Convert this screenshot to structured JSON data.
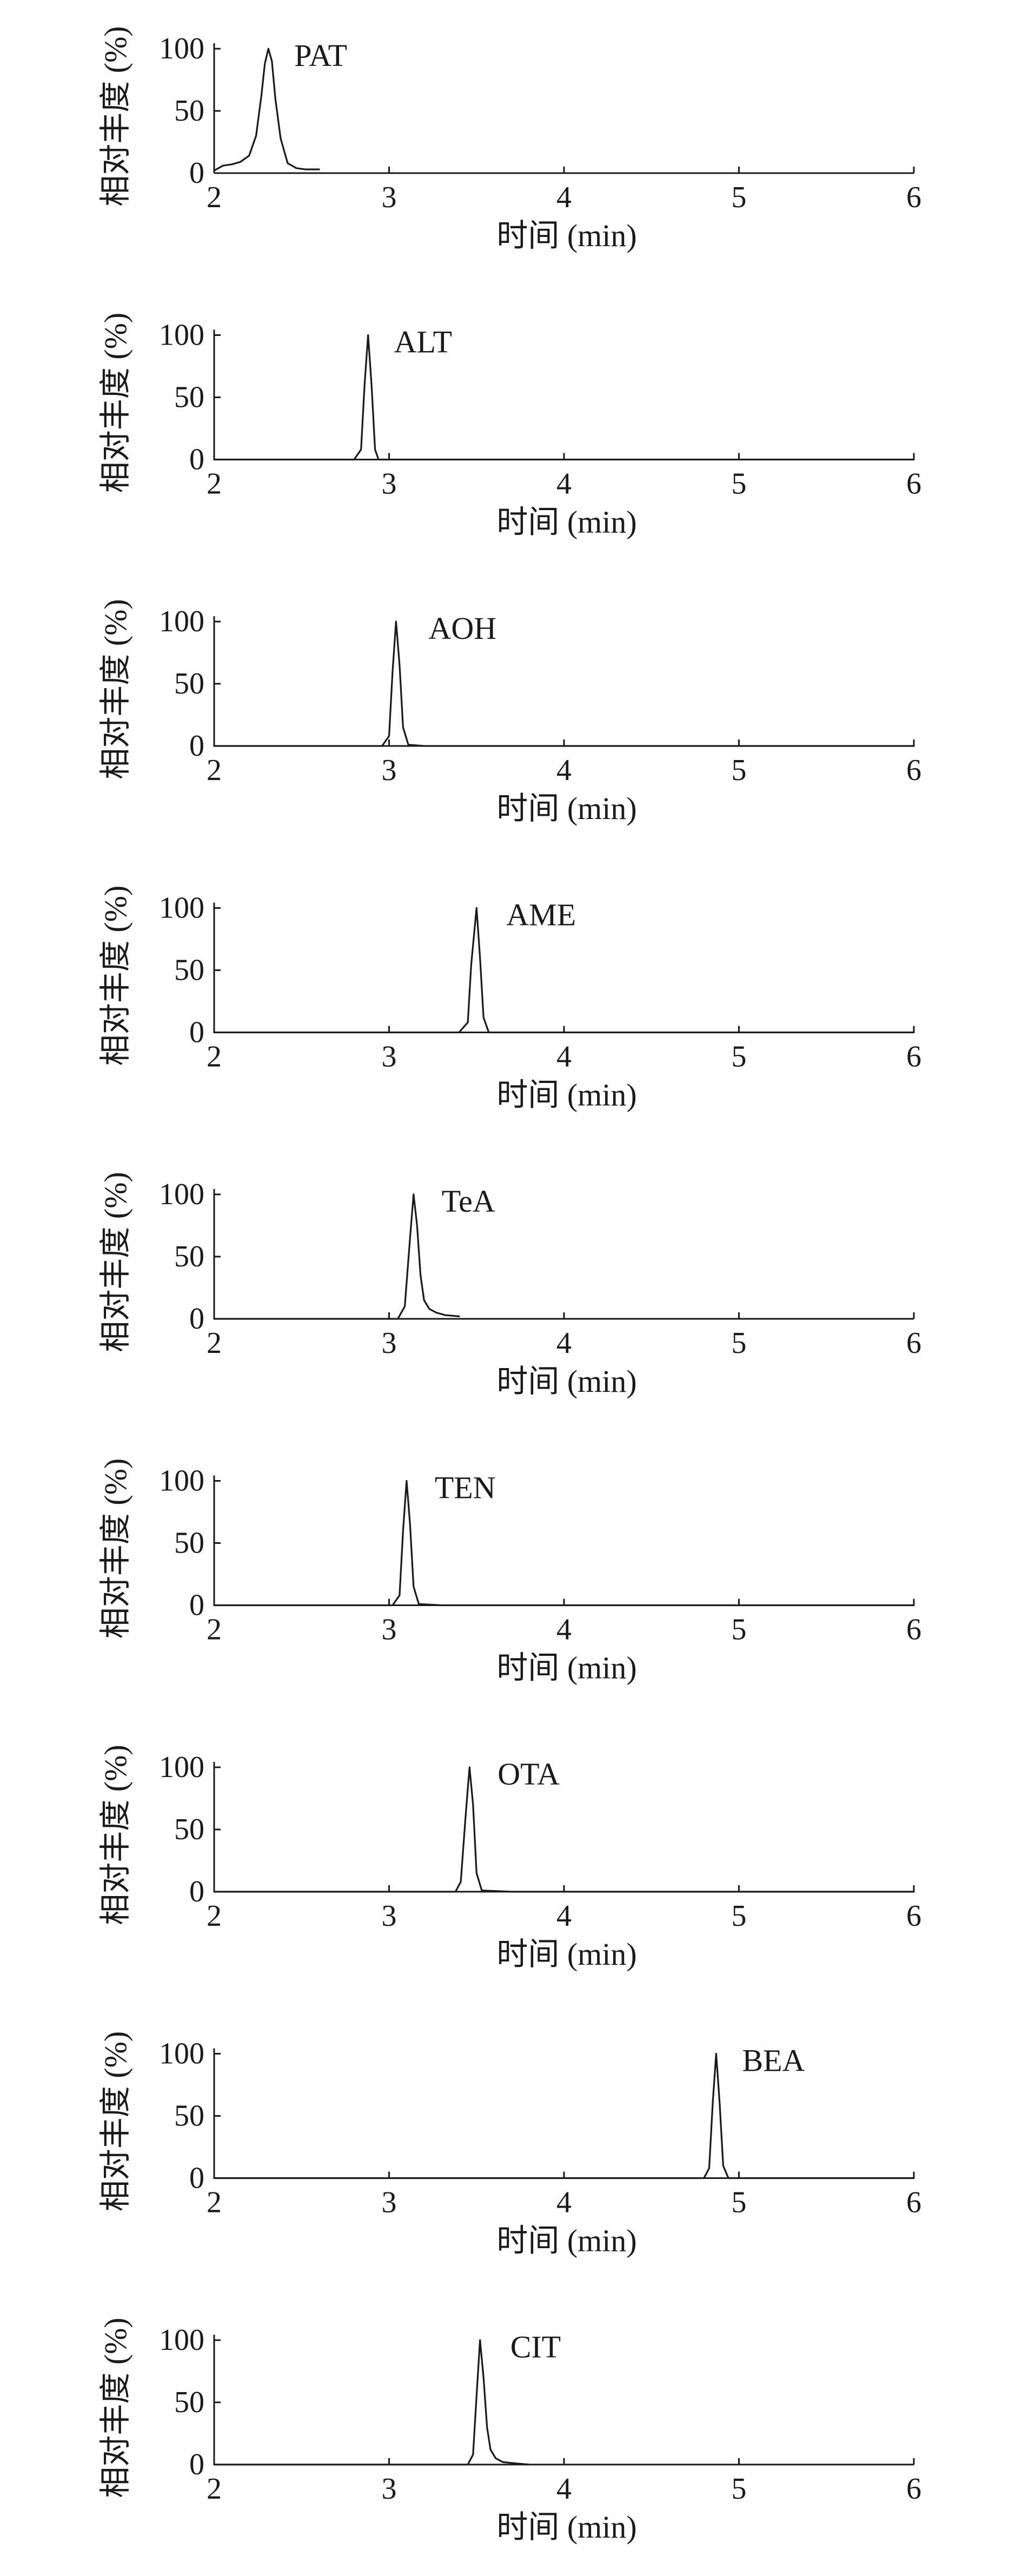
{
  "chart_data": [
    {
      "type": "line",
      "label": "PAT",
      "xlabel": "时间 (min)",
      "ylabel": "相对丰度 (%)",
      "xlim": [
        2,
        6
      ],
      "ylim": [
        0,
        100
      ],
      "xticks": [
        "2",
        "3",
        "4",
        "5",
        "6"
      ],
      "yticks": [
        "0",
        "50",
        "100"
      ],
      "series": [
        {
          "x": [
            2.0,
            2.05,
            2.1,
            2.15,
            2.2,
            2.24,
            2.27,
            2.29,
            2.31,
            2.33,
            2.35,
            2.38,
            2.42,
            2.47,
            2.52,
            2.6
          ],
          "y": [
            2,
            6,
            7,
            9,
            14,
            30,
            62,
            88,
            100,
            90,
            60,
            28,
            8,
            4,
            3,
            3
          ]
        }
      ]
    },
    {
      "type": "line",
      "label": "ALT",
      "xlabel": "时间 (min)",
      "ylabel": "相对丰度 (%)",
      "xlim": [
        2,
        6
      ],
      "ylim": [
        0,
        100
      ],
      "xticks": [
        "2",
        "3",
        "4",
        "5",
        "6"
      ],
      "yticks": [
        "0",
        "50",
        "100"
      ],
      "series": [
        {
          "x": [
            2.0,
            2.8,
            2.84,
            2.86,
            2.88,
            2.9,
            2.92,
            2.94,
            3.0,
            6.0
          ],
          "y": [
            0,
            0,
            8,
            60,
            100,
            60,
            8,
            0,
            0,
            0
          ]
        }
      ]
    },
    {
      "type": "line",
      "label": "AOH",
      "xlabel": "时间 (min)",
      "ylabel": "相对丰度 (%)",
      "xlim": [
        2,
        6
      ],
      "ylim": [
        0,
        100
      ],
      "xticks": [
        "2",
        "3",
        "4",
        "5",
        "6"
      ],
      "yticks": [
        "0",
        "50",
        "100"
      ],
      "series": [
        {
          "x": [
            2.0,
            2.96,
            3.0,
            3.02,
            3.04,
            3.06,
            3.08,
            3.11,
            3.2,
            6.0
          ],
          "y": [
            0,
            0,
            8,
            60,
            100,
            65,
            15,
            1,
            0,
            0
          ]
        }
      ]
    },
    {
      "type": "line",
      "label": "AME",
      "xlabel": "时间 (min)",
      "ylabel": "相对丰度 (%)",
      "xlim": [
        2,
        6
      ],
      "ylim": [
        0,
        100
      ],
      "xticks": [
        "2",
        "3",
        "4",
        "5",
        "6"
      ],
      "yticks": [
        "0",
        "50",
        "100"
      ],
      "series": [
        {
          "x": [
            2.0,
            3.4,
            3.45,
            3.47,
            3.5,
            3.52,
            3.54,
            3.57,
            3.7,
            6.0
          ],
          "y": [
            0,
            0,
            8,
            55,
            100,
            60,
            12,
            0,
            0,
            0
          ]
        }
      ]
    },
    {
      "type": "line",
      "label": "TeA",
      "xlabel": "时间 (min)",
      "ylabel": "相对丰度 (%)",
      "xlim": [
        2,
        6
      ],
      "ylim": [
        0,
        100
      ],
      "xticks": [
        "2",
        "3",
        "4",
        "5",
        "6"
      ],
      "yticks": [
        "0",
        "50",
        "100"
      ],
      "series": [
        {
          "x": [
            2.0,
            3.05,
            3.09,
            3.12,
            3.14,
            3.16,
            3.18,
            3.2,
            3.23,
            3.27,
            3.32,
            3.4
          ],
          "y": [
            0,
            0,
            10,
            65,
            100,
            75,
            35,
            15,
            8,
            5,
            3,
            2
          ]
        }
      ]
    },
    {
      "type": "line",
      "label": "TEN",
      "xlabel": "时间 (min)",
      "ylabel": "相对丰度 (%)",
      "xlim": [
        2,
        6
      ],
      "ylim": [
        0,
        100
      ],
      "xticks": [
        "2",
        "3",
        "4",
        "5",
        "6"
      ],
      "yticks": [
        "0",
        "50",
        "100"
      ],
      "series": [
        {
          "x": [
            2.0,
            3.02,
            3.06,
            3.08,
            3.1,
            3.12,
            3.14,
            3.17,
            3.3,
            6.0
          ],
          "y": [
            0,
            0,
            8,
            60,
            100,
            65,
            15,
            1,
            0,
            0
          ]
        }
      ]
    },
    {
      "type": "line",
      "label": "OTA",
      "xlabel": "时间 (min)",
      "ylabel": "相对丰度 (%)",
      "xlim": [
        2,
        6
      ],
      "ylim": [
        0,
        100
      ],
      "xticks": [
        "2",
        "3",
        "4",
        "5",
        "6"
      ],
      "yticks": [
        "0",
        "50",
        "100"
      ],
      "series": [
        {
          "x": [
            2.0,
            3.38,
            3.41,
            3.44,
            3.46,
            3.48,
            3.5,
            3.53,
            3.7,
            6.0
          ],
          "y": [
            0,
            0,
            8,
            65,
            100,
            70,
            15,
            1,
            0,
            0
          ]
        }
      ]
    },
    {
      "type": "line",
      "label": "BEA",
      "xlabel": "时间 (min)",
      "ylabel": "相对丰度 (%)",
      "xlim": [
        2,
        6
      ],
      "ylim": [
        0,
        100
      ],
      "xticks": [
        "2",
        "3",
        "4",
        "5",
        "6"
      ],
      "yticks": [
        "0",
        "50",
        "100"
      ],
      "series": [
        {
          "x": [
            2.0,
            4.8,
            4.83,
            4.85,
            4.87,
            4.89,
            4.91,
            4.94,
            5.0,
            6.0
          ],
          "y": [
            0,
            0,
            8,
            60,
            100,
            60,
            10,
            0,
            0,
            0
          ]
        }
      ]
    },
    {
      "type": "line",
      "label": "CIT",
      "xlabel": "时间 (min)",
      "ylabel": "相对丰度 (%)",
      "xlim": [
        2,
        6
      ],
      "ylim": [
        0,
        100
      ],
      "xticks": [
        "2",
        "3",
        "4",
        "5",
        "6"
      ],
      "yticks": [
        "0",
        "50",
        "100"
      ],
      "series": [
        {
          "x": [
            2.0,
            3.45,
            3.48,
            3.5,
            3.52,
            3.54,
            3.56,
            3.58,
            3.61,
            3.65,
            3.72,
            3.8
          ],
          "y": [
            0,
            0,
            8,
            55,
            100,
            70,
            30,
            12,
            5,
            2,
            1,
            0
          ]
        }
      ]
    }
  ]
}
